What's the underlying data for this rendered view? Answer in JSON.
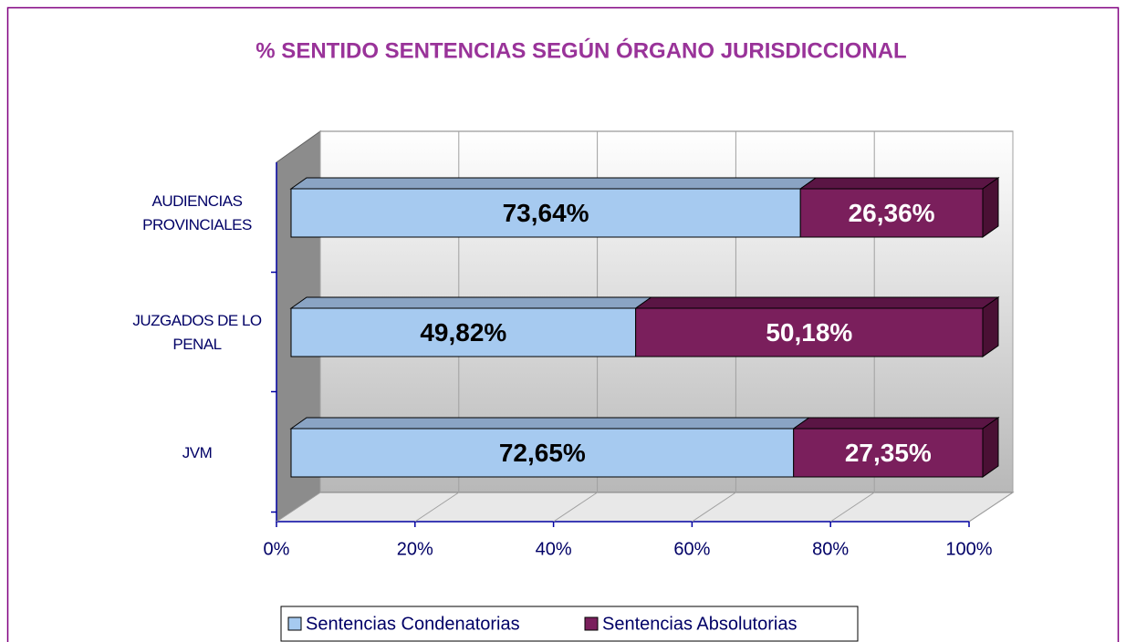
{
  "chart_data": {
    "type": "bar3d_stacked_horizontal",
    "title": "% SENTIDO SENTENCIAS SEGÚN ÓRGANO JURISDICCIONAL",
    "categories": [
      "AUDIENCIAS PROVINCIALES",
      "JUZGADOS DE LO PENAL",
      "JVM"
    ],
    "series": [
      {
        "name": "Sentencias Condenatorias",
        "color": "#a6caf0",
        "values": [
          73.64,
          49.82,
          72.65
        ],
        "value_labels": [
          "73,64%",
          "49,82%",
          "72,65%"
        ]
      },
      {
        "name": "Sentencias Absolutorias",
        "color": "#7a1f5c",
        "values": [
          26.36,
          50.18,
          27.35
        ],
        "value_labels": [
          "26,36%",
          "50,18%",
          "27,35%"
        ]
      }
    ],
    "xlim": [
      0,
      100
    ],
    "xticks": [
      {
        "value": 0,
        "label": "0%"
      },
      {
        "value": 20,
        "label": "20%"
      },
      {
        "value": 40,
        "label": "40%"
      },
      {
        "value": 60,
        "label": "60%"
      },
      {
        "value": 80,
        "label": "80%"
      },
      {
        "value": 100,
        "label": "100%"
      }
    ],
    "grid": true,
    "legend": "bottom"
  }
}
